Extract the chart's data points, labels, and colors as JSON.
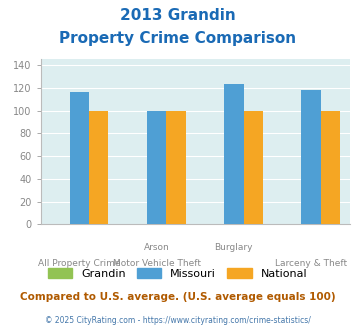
{
  "title_line1": "2013 Grandin",
  "title_line2": "Property Crime Comparison",
  "cat_top_labels": [
    "",
    "Arson",
    "Burglary",
    ""
  ],
  "cat_bot_labels": [
    "All Property Crime",
    "Motor Vehicle Theft",
    "",
    "Larceny & Theft"
  ],
  "grandin": [
    0,
    0,
    0,
    0
  ],
  "missouri": [
    116,
    100,
    123,
    118
  ],
  "national": [
    100,
    100,
    100,
    100
  ],
  "grandin_color": "#92c353",
  "missouri_color": "#4f9fd4",
  "national_color": "#f5a623",
  "ylim": [
    0,
    145
  ],
  "yticks": [
    0,
    20,
    40,
    60,
    80,
    100,
    120,
    140
  ],
  "bg_color": "#ddeef0",
  "footer_text": "Compared to U.S. average. (U.S. average equals 100)",
  "credit_text": "© 2025 CityRating.com - https://www.cityrating.com/crime-statistics/",
  "title_color": "#1a6ab5",
  "footer_color": "#b05a00",
  "credit_color": "#4477aa",
  "tick_color": "#888888",
  "bar_width": 0.25,
  "group_positions": [
    0,
    1,
    2,
    3
  ]
}
